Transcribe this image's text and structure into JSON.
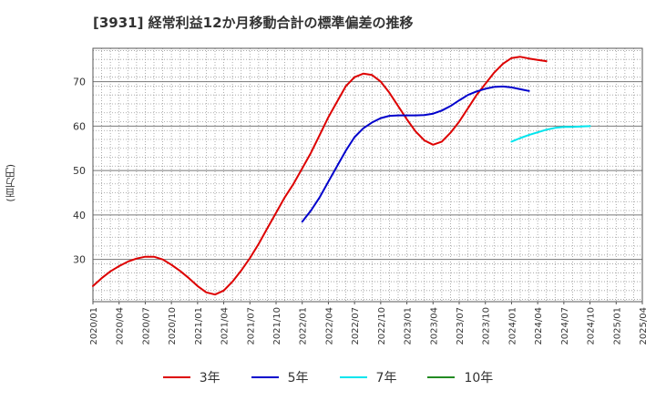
{
  "title": "[3931]  経常利益12か月移動合計の標準偏差の推移",
  "ylabel": "(百万円)",
  "chart_data": {
    "type": "line",
    "title": "[3931]  経常利益12か月移動合計の標準偏差の推移",
    "ylabel": "(百万円)",
    "ylim": [
      20.5,
      77.5
    ],
    "yticks": [
      30,
      40,
      50,
      60,
      70
    ],
    "xlim": [
      "2020-01",
      "2025-04"
    ],
    "xticks": [
      "2020/01",
      "2020/04",
      "2020/07",
      "2020/10",
      "2021/01",
      "2021/04",
      "2021/07",
      "2021/10",
      "2022/01",
      "2022/04",
      "2022/07",
      "2022/10",
      "2023/01",
      "2023/04",
      "2023/07",
      "2023/10",
      "2024/01",
      "2024/04",
      "2024/07",
      "2024/10",
      "2025/01",
      "2025/04"
    ],
    "grid": true,
    "legend_position": "bottom",
    "series": [
      {
        "name": "3年",
        "color": "#dd0000",
        "x": [
          "2020-01",
          "2020-02",
          "2020-03",
          "2020-04",
          "2020-05",
          "2020-06",
          "2020-07",
          "2020-08",
          "2020-09",
          "2020-10",
          "2020-11",
          "2020-12",
          "2021-01",
          "2021-02",
          "2021-03",
          "2021-04",
          "2021-05",
          "2021-06",
          "2021-07",
          "2021-08",
          "2021-09",
          "2021-10",
          "2021-11",
          "2021-12",
          "2022-01",
          "2022-02",
          "2022-03",
          "2022-04",
          "2022-05",
          "2022-06",
          "2022-07",
          "2022-08",
          "2022-09",
          "2022-10",
          "2022-11",
          "2022-12",
          "2023-01",
          "2023-02",
          "2023-03",
          "2023-04",
          "2023-05",
          "2023-06",
          "2023-07",
          "2023-08",
          "2023-09",
          "2023-10",
          "2023-11",
          "2023-12",
          "2024-01",
          "2024-02",
          "2024-03",
          "2024-04",
          "2024-05",
          "2024-06",
          "2024-07",
          "2024-08",
          "2024-09",
          "2024-10",
          "2024-11",
          "2024-12",
          "2025-01"
        ],
        "values": [
          24.0,
          25.8,
          27.3,
          28.5,
          29.5,
          30.2,
          30.6,
          30.6,
          30.0,
          28.8,
          27.4,
          25.8,
          24.0,
          22.6,
          22.1,
          23.0,
          25.0,
          27.5,
          30.3,
          33.5,
          37.0,
          40.5,
          44.0,
          47.0,
          50.5,
          54.0,
          58.0,
          62.0,
          65.5,
          69.0,
          71.0,
          71.8,
          71.5,
          70.0,
          67.5,
          64.5,
          61.5,
          58.8,
          56.8,
          55.8,
          56.5,
          58.5,
          61.0,
          64.0,
          67.0,
          69.5,
          72.0,
          74.0,
          75.3,
          75.6,
          75.2,
          74.9,
          74.6,
          null,
          null,
          null,
          null,
          null,
          null,
          null,
          null
        ]
      },
      {
        "name": "5年",
        "color": "#0000cc",
        "x": [
          "2022-01",
          "2022-02",
          "2022-03",
          "2022-04",
          "2022-05",
          "2022-06",
          "2022-07",
          "2022-08",
          "2022-09",
          "2022-10",
          "2022-11",
          "2022-12",
          "2023-01",
          "2023-02",
          "2023-03",
          "2023-04",
          "2023-05",
          "2023-06",
          "2023-07",
          "2023-08",
          "2023-09",
          "2023-10",
          "2023-11",
          "2023-12",
          "2024-01",
          "2024-02",
          "2024-03",
          "2024-04",
          "2024-05",
          "2024-06",
          "2024-07",
          "2024-08",
          "2024-09",
          "2024-10",
          "2024-11",
          "2024-12",
          "2025-01"
        ],
        "values": [
          38.5,
          41.0,
          44.0,
          47.5,
          51.0,
          54.5,
          57.5,
          59.5,
          60.8,
          61.8,
          62.3,
          62.4,
          62.4,
          62.4,
          62.5,
          62.8,
          63.5,
          64.5,
          65.8,
          67.0,
          67.8,
          68.4,
          68.8,
          68.9,
          68.7,
          68.3,
          67.9,
          null,
          null,
          null,
          null,
          null,
          null,
          null,
          null,
          null,
          null
        ]
      },
      {
        "name": "7年",
        "color": "#00e5ee",
        "x": [
          "2024-01",
          "2024-02",
          "2024-03",
          "2024-04",
          "2024-05",
          "2024-06",
          "2024-07",
          "2024-08",
          "2024-09",
          "2024-10",
          "2024-11",
          "2024-12",
          "2025-01"
        ],
        "values": [
          56.5,
          57.3,
          58.0,
          58.6,
          59.2,
          59.6,
          59.8,
          59.8,
          59.9,
          60.0,
          null,
          null,
          null
        ]
      },
      {
        "name": "10年",
        "color": "#228b22",
        "x": [],
        "values": []
      }
    ]
  }
}
